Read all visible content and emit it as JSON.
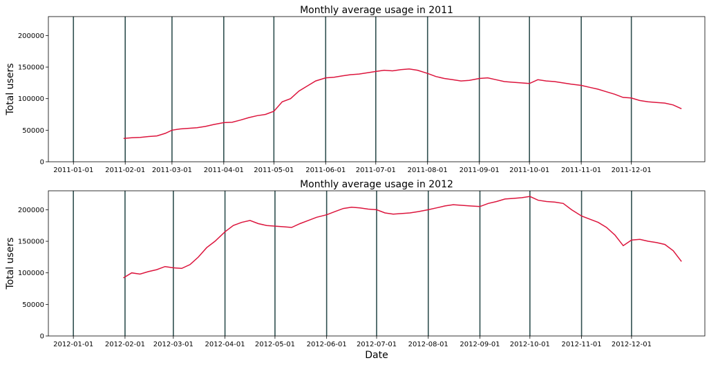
{
  "chart_data": [
    {
      "type": "line",
      "title": "Monthly average usage in 2011",
      "ylabel": "Total users",
      "xlabel": "",
      "ylim": [
        0,
        230000
      ],
      "xlim": [
        "2010-12-17",
        "2012-01-14"
      ],
      "yticks": [
        0,
        50000,
        100000,
        150000,
        200000
      ],
      "xticks": [
        "2011-01-01",
        "2011-02-01",
        "2011-03-01",
        "2011-04-01",
        "2011-05-01",
        "2011-06-01",
        "2011-07-01",
        "2011-08-01",
        "2011-09-01",
        "2011-10-01",
        "2011-11-01",
        "2011-12-01"
      ],
      "vlines": [
        "2011-01-01",
        "2011-02-01",
        "2011-03-01",
        "2011-04-01",
        "2011-05-01",
        "2011-06-01",
        "2011-07-01",
        "2011-08-01",
        "2011-09-01",
        "2011-10-01",
        "2011-11-01",
        "2011-12-01"
      ],
      "grid": false,
      "colors": {
        "series": "#dc143c",
        "vlines": "#2f4f4f"
      },
      "series": [
        {
          "x": [
            "2011-01-31",
            "2011-02-05",
            "2011-02-10",
            "2011-02-15",
            "2011-02-20",
            "2011-02-25",
            "2011-03-01",
            "2011-03-06",
            "2011-03-11",
            "2011-03-16",
            "2011-03-21",
            "2011-03-26",
            "2011-04-01",
            "2011-04-06",
            "2011-04-11",
            "2011-04-16",
            "2011-04-21",
            "2011-04-26",
            "2011-05-01",
            "2011-05-06",
            "2011-05-11",
            "2011-05-16",
            "2011-05-21",
            "2011-05-26",
            "2011-06-01",
            "2011-06-06",
            "2011-06-11",
            "2011-06-16",
            "2011-06-21",
            "2011-06-26",
            "2011-07-01",
            "2011-07-06",
            "2011-07-11",
            "2011-07-16",
            "2011-07-21",
            "2011-07-26",
            "2011-08-01",
            "2011-08-06",
            "2011-08-11",
            "2011-08-16",
            "2011-08-21",
            "2011-08-26",
            "2011-09-01",
            "2011-09-06",
            "2011-09-11",
            "2011-09-16",
            "2011-09-21",
            "2011-09-26",
            "2011-10-01",
            "2011-10-06",
            "2011-10-11",
            "2011-10-16",
            "2011-10-21",
            "2011-10-26",
            "2011-11-01",
            "2011-11-06",
            "2011-11-11",
            "2011-11-16",
            "2011-11-21",
            "2011-11-26",
            "2011-12-01",
            "2011-12-06",
            "2011-12-11",
            "2011-12-16",
            "2011-12-21",
            "2011-12-26",
            "2011-12-31"
          ],
          "y": [
            37000,
            38000,
            38500,
            40000,
            41000,
            45000,
            50000,
            52000,
            53000,
            54000,
            56000,
            59000,
            62000,
            62500,
            66000,
            70000,
            73000,
            75000,
            80000,
            95000,
            100000,
            112000,
            120000,
            128000,
            133000,
            134000,
            136000,
            138000,
            139000,
            141000,
            143000,
            145000,
            144000,
            146000,
            147000,
            145000,
            140000,
            135000,
            132000,
            130000,
            128000,
            129000,
            132000,
            133000,
            130000,
            127000,
            126000,
            125000,
            124000,
            130000,
            128000,
            127000,
            125000,
            123000,
            121000,
            118000,
            115000,
            111000,
            107000,
            102000,
            101000,
            97000,
            95000,
            94000,
            93000,
            90000,
            84000
          ]
        }
      ]
    },
    {
      "type": "line",
      "title": "Monthly average usage in 2012",
      "ylabel": "Total users",
      "xlabel": "Date",
      "ylim": [
        0,
        230000
      ],
      "xlim": [
        "2011-12-17",
        "2013-01-14"
      ],
      "yticks": [
        0,
        50000,
        100000,
        150000,
        200000
      ],
      "xticks": [
        "2012-01-01",
        "2012-02-01",
        "2012-03-01",
        "2012-04-01",
        "2012-05-01",
        "2012-06-01",
        "2012-07-01",
        "2012-08-01",
        "2012-09-01",
        "2012-10-01",
        "2012-11-01",
        "2012-12-01"
      ],
      "vlines": [
        "2012-01-01",
        "2012-02-01",
        "2012-03-01",
        "2012-04-01",
        "2012-05-01",
        "2012-06-01",
        "2012-07-01",
        "2012-08-01",
        "2012-09-01",
        "2012-10-01",
        "2012-11-01",
        "2012-12-01"
      ],
      "grid": false,
      "colors": {
        "series": "#dc143c",
        "vlines": "#2f4f4f"
      },
      "series": [
        {
          "x": [
            "2012-01-31",
            "2012-02-05",
            "2012-02-10",
            "2012-02-15",
            "2012-02-20",
            "2012-02-25",
            "2012-03-01",
            "2012-03-06",
            "2012-03-11",
            "2012-03-16",
            "2012-03-21",
            "2012-03-26",
            "2012-04-01",
            "2012-04-06",
            "2012-04-11",
            "2012-04-16",
            "2012-04-21",
            "2012-04-26",
            "2012-05-01",
            "2012-05-06",
            "2012-05-11",
            "2012-05-16",
            "2012-05-21",
            "2012-05-26",
            "2012-06-01",
            "2012-06-06",
            "2012-06-11",
            "2012-06-16",
            "2012-06-21",
            "2012-06-26",
            "2012-07-01",
            "2012-07-06",
            "2012-07-11",
            "2012-07-16",
            "2012-07-21",
            "2012-07-26",
            "2012-08-01",
            "2012-08-06",
            "2012-08-11",
            "2012-08-16",
            "2012-08-21",
            "2012-08-26",
            "2012-09-01",
            "2012-09-06",
            "2012-09-11",
            "2012-09-16",
            "2012-09-21",
            "2012-09-26",
            "2012-10-01",
            "2012-10-06",
            "2012-10-11",
            "2012-10-16",
            "2012-10-21",
            "2012-10-26",
            "2012-11-01",
            "2012-11-06",
            "2012-11-11",
            "2012-11-16",
            "2012-11-21",
            "2012-11-26",
            "2012-12-01",
            "2012-12-06",
            "2012-12-11",
            "2012-12-16",
            "2012-12-21",
            "2012-12-26",
            "2012-12-31"
          ],
          "y": [
            92000,
            100000,
            98000,
            102000,
            105000,
            110000,
            108000,
            107000,
            113000,
            125000,
            140000,
            150000,
            165000,
            175000,
            180000,
            183000,
            178000,
            175000,
            174000,
            173000,
            172000,
            178000,
            183000,
            188000,
            192000,
            197000,
            202000,
            204000,
            203000,
            201000,
            200000,
            195000,
            193000,
            194000,
            195000,
            197000,
            200000,
            203000,
            206000,
            208000,
            207000,
            206000,
            205000,
            210000,
            213000,
            217000,
            218000,
            219000,
            221000,
            215000,
            213000,
            212000,
            210000,
            200000,
            190000,
            185000,
            180000,
            172000,
            160000,
            143000,
            152000,
            153000,
            150000,
            148000,
            145000,
            135000,
            118000
          ]
        }
      ]
    }
  ]
}
